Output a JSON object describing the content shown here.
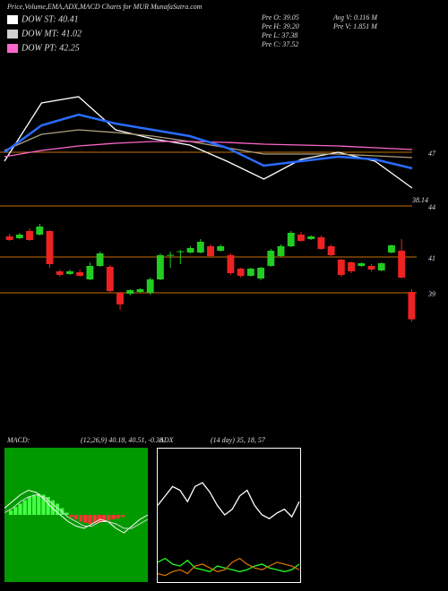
{
  "header": {
    "title": "Price,Volume,EMA,ADX,MACD Charts for MUR MunafaSutra.com",
    "legend": [
      {
        "label": "DOW ST: 40.41",
        "color": "#ffffff"
      },
      {
        "label": "DOW MT: 41.02",
        "color": "#d0d0d0"
      },
      {
        "label": "DOW PT: 42.25",
        "color": "#ff66cc"
      }
    ],
    "stats": [
      "Pre  O: 39.05",
      "Pre  H: 39.20",
      "Pre  L: 37.38",
      "Pre  C: 37.52",
      "Avg V: 0.116  M",
      "Pre  V: 1.851  M"
    ]
  },
  "chart_data": [
    {
      "type": "line",
      "ylim": [
        43.9,
        52.5
      ],
      "yticks": [
        47,
        44
      ],
      "grid_color": "#c87000",
      "annotation": "38.14",
      "series": [
        {
          "color": "#ffffff",
          "values": [
            46.5,
            49.75,
            50.1,
            48.25,
            47.75,
            47.4,
            46.5,
            45.5,
            46.6,
            47.0,
            46.5,
            45.0
          ]
        },
        {
          "color": "#b0a080",
          "values": [
            47.1,
            48.0,
            48.25,
            48.1,
            47.9,
            47.6,
            47.25,
            46.9,
            46.9,
            46.9,
            46.8,
            46.7
          ]
        },
        {
          "color": "#ff66cc",
          "values": [
            46.75,
            47.1,
            47.35,
            47.5,
            47.6,
            47.6,
            47.55,
            47.45,
            47.4,
            47.35,
            47.25,
            47.15
          ]
        },
        {
          "color": "#2a6bff",
          "values": [
            47.0,
            48.5,
            49.1,
            48.6,
            48.25,
            47.9,
            47.25,
            46.25,
            46.5,
            46.75,
            46.6,
            46.1
          ]
        }
      ]
    },
    {
      "type": "candlestick",
      "ylim": [
        31.35,
        43.6
      ],
      "yticks": [
        41,
        39
      ],
      "grid_color": "#c87000",
      "up_color": "#22cc22",
      "down_color": "#ee2222",
      "open": [
        42.15,
        42.05,
        42.45,
        42.25,
        42.45,
        40.2,
        40.05,
        40.15,
        39.75,
        40.5,
        40.45,
        39.0,
        38.95,
        39.05,
        39.0,
        39.75,
        41.1,
        41.3,
        41.25,
        41.25,
        41.6,
        41.35,
        41.1,
        40.35,
        39.95,
        39.8,
        40.5,
        41.05,
        41.6,
        42.25,
        42.0,
        42.1,
        41.6,
        40.85,
        40.7,
        40.5,
        40.5,
        40.25,
        41.25,
        41.35,
        39.05
      ],
      "high": [
        42.3,
        42.35,
        42.6,
        42.85,
        42.5,
        40.3,
        40.3,
        40.3,
        40.7,
        41.3,
        40.55,
        39.05,
        39.2,
        39.25,
        39.85,
        41.2,
        41.3,
        41.4,
        41.6,
        42.0,
        41.7,
        41.7,
        41.2,
        40.4,
        40.4,
        40.45,
        41.45,
        41.7,
        42.45,
        42.4,
        42.2,
        42.2,
        41.7,
        40.9,
        40.75,
        40.7,
        40.6,
        40.7,
        41.7,
        42.0,
        39.2
      ],
      "low": [
        41.9,
        42.0,
        41.9,
        42.2,
        40.4,
        39.9,
        40.0,
        39.9,
        39.7,
        40.45,
        39.0,
        38.05,
        38.85,
        39.0,
        38.9,
        39.7,
        40.4,
        40.6,
        41.2,
        41.2,
        41.0,
        41.3,
        40.0,
        39.85,
        39.9,
        39.7,
        40.45,
        41.0,
        41.55,
        41.85,
        41.95,
        41.4,
        41.05,
        39.9,
        40.1,
        40.45,
        40.2,
        40.2,
        41.2,
        39.8,
        37.38
      ],
      "close": [
        41.95,
        42.25,
        41.95,
        42.7,
        40.6,
        40.0,
        40.2,
        39.95,
        40.5,
        41.2,
        39.1,
        38.35,
        39.15,
        39.2,
        39.75,
        41.1,
        41.12,
        41.32,
        41.5,
        41.85,
        41.05,
        41.6,
        40.1,
        39.95,
        40.35,
        40.4,
        41.35,
        41.6,
        42.35,
        41.9,
        42.15,
        41.45,
        41.1,
        40.0,
        40.2,
        40.65,
        40.3,
        40.65,
        41.65,
        39.85,
        37.52
      ]
    },
    {
      "type": "macd",
      "label": "MACD:",
      "params": "(12,26,9) 40.18, 40.51, -0.38",
      "ylim": [
        -3,
        3
      ],
      "pos_color": "#44ff44",
      "neg_color": "#ff3333",
      "histogram": [
        0.2,
        0.35,
        0.5,
        0.65,
        0.8,
        0.9,
        0.95,
        0.9,
        0.8,
        0.65,
        0.5,
        0.3,
        0.1,
        -0.1,
        -0.2,
        -0.3,
        -0.35,
        -0.4,
        -0.38,
        -0.35,
        -0.3,
        -0.25,
        -0.2,
        -0.15,
        -0.1
      ],
      "lines": [
        {
          "color": "#ffffff",
          "values": [
            0.3,
            0.6,
            0.9,
            1.1,
            1.0,
            0.7,
            0.3,
            0.0,
            -0.3,
            -0.5,
            -0.6,
            -0.4,
            -0.2,
            -0.3,
            -0.6,
            -0.8,
            -0.5,
            -0.2,
            0.0
          ]
        },
        {
          "color": "#dddddd",
          "values": [
            0.1,
            0.3,
            0.6,
            0.8,
            0.9,
            0.8,
            0.5,
            0.2,
            -0.1,
            -0.3,
            -0.5,
            -0.5,
            -0.3,
            -0.3,
            -0.4,
            -0.6,
            -0.6,
            -0.4,
            -0.2
          ]
        }
      ]
    },
    {
      "type": "line",
      "label": "ADX",
      "params": "(14 day) 35, 18, 57",
      "ylim": [
        0,
        70
      ],
      "series": [
        {
          "color": "#ffffff",
          "values": [
            40,
            45,
            50,
            48,
            42,
            50,
            52,
            47,
            40,
            35,
            38,
            45,
            48,
            40,
            35,
            33,
            36,
            38,
            34,
            42
          ]
        },
        {
          "color": "#22ff22",
          "values": [
            10,
            12,
            9,
            8,
            11,
            7,
            6,
            5,
            8,
            7,
            6,
            5,
            6,
            8,
            9,
            7,
            6,
            5,
            6,
            9
          ]
        },
        {
          "color": "#d07000",
          "values": [
            4,
            3,
            5,
            6,
            4,
            8,
            9,
            7,
            5,
            6,
            10,
            12,
            9,
            7,
            6,
            8,
            10,
            9,
            8,
            6
          ]
        }
      ]
    }
  ]
}
